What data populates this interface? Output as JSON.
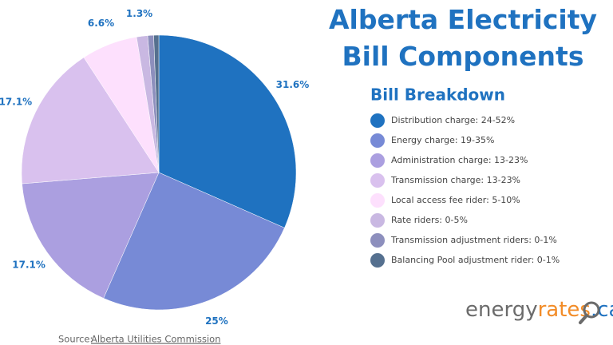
{
  "chart_data": {
    "type": "pie",
    "title": "Alberta Electricity\nBill Components",
    "legend_title": "Bill Breakdown",
    "categories": [
      "Distribution charge: 24-52%",
      "Energy charge: 19-35%",
      "Administration charge: 13-23%",
      "Transmission charge: 13-23%",
      "Local access fee rider: 5-10%",
      "Rate riders: 0-5%",
      "Transmission adjustment riders: 0-1%",
      "Balancing Pool adjustment rider: 0-1%"
    ],
    "values": [
      31.6,
      25,
      17.1,
      17.1,
      6.6,
      1.3,
      0.7,
      0.6
    ],
    "value_labels": [
      "31.6%",
      "25%",
      "17.1%",
      "17.1%",
      "6.6%",
      "1.3%",
      null,
      null
    ],
    "colors": [
      "#1f72c0",
      "#778ad6",
      "#ab9fe0",
      "#d9c1ee",
      "#fde0fd",
      "#c9b8e2",
      "#8d8fbd",
      "#55708f"
    ],
    "label_color": "#1f72c0",
    "source": {
      "label": "Source:",
      "link": "Alberta Utilities Commission"
    }
  },
  "logo": {
    "parts": [
      "energy",
      "rates",
      ".ca"
    ]
  }
}
